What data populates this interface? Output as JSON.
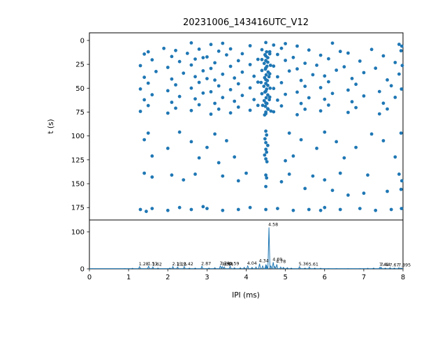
{
  "figure_title": "20231006_143416UTC_V12",
  "chart_data": [
    {
      "type": "scatter",
      "title": "20231006_143416UTC_V12",
      "xlabel": "",
      "ylabel": "t (s)",
      "xlim": [
        0,
        8
      ],
      "ylim": [
        -8,
        188
      ],
      "y_inverted": true,
      "xticks": [
        0,
        1,
        2,
        3,
        4,
        5,
        6,
        7,
        8
      ],
      "yticks": [
        0,
        25,
        50,
        75,
        100,
        125,
        150,
        175
      ],
      "marker_color": "#1f77b4",
      "points": [
        [
          2.6,
          2.5
        ],
        [
          3.1,
          4.2
        ],
        [
          3.4,
          3.0
        ],
        [
          4.1,
          5.5
        ],
        [
          4.5,
          2.2
        ],
        [
          4.7,
          4.8
        ],
        [
          5.0,
          3.3
        ],
        [
          5.3,
          5.9
        ],
        [
          6.2,
          2.8
        ],
        [
          7.9,
          4.1
        ],
        [
          7.97,
          6.0
        ],
        [
          1.9,
          8.3
        ],
        [
          2.2,
          10.5
        ],
        [
          2.8,
          9.1
        ],
        [
          3.3,
          11.2
        ],
        [
          3.6,
          8.8
        ],
        [
          4.4,
          9.7
        ],
        [
          4.6,
          11.8
        ],
        [
          4.9,
          8.2
        ],
        [
          5.6,
          10.1
        ],
        [
          6.4,
          11.5
        ],
        [
          7.2,
          9.4
        ],
        [
          7.95,
          10.8
        ],
        [
          1.5,
          11.9
        ],
        [
          1.4,
          14.2
        ],
        [
          2.1,
          16.8
        ],
        [
          2.5,
          13.5
        ],
        [
          3.0,
          17.2
        ],
        [
          3.5,
          15.1
        ],
        [
          3.9,
          13.9
        ],
        [
          4.5,
          16.3
        ],
        [
          4.8,
          14.7
        ],
        [
          5.2,
          17.8
        ],
        [
          5.9,
          15.5
        ],
        [
          6.6,
          13.2
        ],
        [
          7.5,
          16.1
        ],
        [
          2.9,
          18.0
        ],
        [
          1.6,
          20.3
        ],
        [
          2.3,
          22.1
        ],
        [
          2.7,
          19.5
        ],
        [
          3.2,
          23.4
        ],
        [
          3.8,
          21.2
        ],
        [
          4.3,
          19.8
        ],
        [
          4.55,
          22.8
        ],
        [
          5.0,
          20.9
        ],
        [
          5.5,
          23.9
        ],
        [
          6.1,
          19.2
        ],
        [
          6.9,
          21.6
        ],
        [
          7.8,
          23.1
        ],
        [
          1.3,
          26.4
        ],
        [
          2.0,
          28.2
        ],
        [
          2.6,
          25.7
        ],
        [
          3.1,
          29.3
        ],
        [
          3.6,
          27.1
        ],
        [
          4.1,
          25.3
        ],
        [
          4.5,
          28.8
        ],
        [
          4.7,
          26.9
        ],
        [
          5.3,
          29.8
        ],
        [
          5.8,
          25.9
        ],
        [
          6.5,
          27.6
        ],
        [
          7.3,
          29.1
        ],
        [
          7.98,
          26.2
        ],
        [
          1.7,
          32.5
        ],
        [
          2.4,
          34.3
        ],
        [
          2.9,
          31.8
        ],
        [
          3.4,
          35.4
        ],
        [
          3.9,
          33.2
        ],
        [
          4.4,
          31.4
        ],
        [
          4.6,
          34.9
        ],
        [
          5.1,
          32.0
        ],
        [
          5.7,
          35.9
        ],
        [
          6.3,
          31.1
        ],
        [
          7.0,
          33.7
        ],
        [
          7.9,
          35.2
        ],
        [
          1.4,
          38.6
        ],
        [
          2.1,
          40.4
        ],
        [
          2.7,
          37.9
        ],
        [
          3.2,
          41.5
        ],
        [
          3.7,
          39.3
        ],
        [
          4.2,
          37.5
        ],
        [
          4.5,
          41.0
        ],
        [
          4.8,
          38.1
        ],
        [
          5.4,
          41.9
        ],
        [
          6.0,
          37.2
        ],
        [
          6.7,
          39.8
        ],
        [
          7.6,
          41.3
        ],
        [
          3.0,
          40.0
        ],
        [
          1.5,
          44.7
        ],
        [
          2.2,
          46.5
        ],
        [
          2.8,
          43.9
        ],
        [
          3.3,
          47.6
        ],
        [
          3.8,
          45.4
        ],
        [
          4.3,
          43.6
        ],
        [
          4.55,
          47.1
        ],
        [
          4.9,
          44.2
        ],
        [
          5.5,
          48.0
        ],
        [
          6.1,
          43.3
        ],
        [
          6.8,
          45.9
        ],
        [
          7.7,
          47.4
        ],
        [
          1.3,
          50.8
        ],
        [
          2.0,
          52.6
        ],
        [
          2.6,
          49.9
        ],
        [
          3.1,
          53.7
        ],
        [
          3.6,
          51.5
        ],
        [
          4.1,
          49.7
        ],
        [
          4.5,
          53.2
        ],
        [
          4.7,
          50.3
        ],
        [
          5.3,
          54.1
        ],
        [
          5.9,
          49.4
        ],
        [
          6.6,
          52.0
        ],
        [
          7.4,
          53.5
        ],
        [
          7.96,
          50.9
        ],
        [
          1.6,
          56.9
        ],
        [
          2.3,
          58.7
        ],
        [
          2.9,
          55.1
        ],
        [
          3.4,
          59.8
        ],
        [
          3.9,
          57.6
        ],
        [
          4.4,
          55.8
        ],
        [
          4.6,
          59.3
        ],
        [
          5.0,
          56.4
        ],
        [
          5.6,
          60.0
        ],
        [
          6.2,
          55.5
        ],
        [
          7.0,
          58.1
        ],
        [
          7.8,
          59.6
        ],
        [
          1.4,
          62.1
        ],
        [
          2.1,
          64.8
        ],
        [
          2.7,
          61.2
        ],
        [
          3.2,
          65.9
        ],
        [
          3.7,
          63.7
        ],
        [
          4.2,
          61.9
        ],
        [
          4.5,
          65.4
        ],
        [
          4.8,
          62.5
        ],
        [
          5.4,
          66.0
        ],
        [
          6.0,
          61.6
        ],
        [
          6.7,
          64.2
        ],
        [
          7.5,
          65.7
        ],
        [
          1.5,
          68.2
        ],
        [
          2.2,
          70.9
        ],
        [
          2.8,
          67.3
        ],
        [
          3.3,
          71.9
        ],
        [
          3.8,
          69.8
        ],
        [
          4.3,
          68.0
        ],
        [
          4.55,
          71.5
        ],
        [
          4.9,
          68.6
        ],
        [
          5.5,
          72.0
        ],
        [
          6.1,
          67.7
        ],
        [
          6.8,
          70.3
        ],
        [
          7.6,
          71.8
        ],
        [
          1.3,
          74.3
        ],
        [
          2.0,
          76.1
        ],
        [
          2.6,
          73.4
        ],
        [
          3.1,
          77.2
        ],
        [
          3.6,
          75.9
        ],
        [
          4.1,
          73.1
        ],
        [
          4.5,
          76.6
        ],
        [
          4.7,
          74.7
        ],
        [
          5.3,
          77.8
        ],
        [
          5.9,
          73.8
        ],
        [
          6.6,
          75.4
        ],
        [
          7.4,
          76.9
        ],
        [
          4.52,
          12
        ],
        [
          4.48,
          15
        ],
        [
          4.55,
          18
        ],
        [
          4.5,
          21
        ],
        [
          4.46,
          24
        ],
        [
          4.53,
          27
        ],
        [
          4.49,
          30
        ],
        [
          4.56,
          33
        ],
        [
          4.51,
          36
        ],
        [
          4.47,
          39
        ],
        [
          4.54,
          42
        ],
        [
          4.5,
          45
        ],
        [
          4.45,
          48
        ],
        [
          4.52,
          51
        ],
        [
          4.48,
          54
        ],
        [
          4.55,
          57
        ],
        [
          4.51,
          60
        ],
        [
          4.46,
          63
        ],
        [
          4.53,
          66
        ],
        [
          4.49,
          69
        ],
        [
          4.56,
          72
        ],
        [
          4.5,
          75
        ],
        [
          4.47,
          78
        ],
        [
          4.6,
          14
        ],
        [
          4.62,
          26
        ],
        [
          4.58,
          38
        ],
        [
          4.61,
          50
        ],
        [
          4.59,
          62
        ],
        [
          4.63,
          74
        ],
        [
          4.4,
          20
        ],
        [
          4.38,
          44
        ],
        [
          4.42,
          68
        ],
        [
          1.5,
          97
        ],
        [
          2.3,
          96
        ],
        [
          3.2,
          98
        ],
        [
          4.5,
          95
        ],
        [
          4.52,
          99
        ],
        [
          5.1,
          97
        ],
        [
          6.0,
          96
        ],
        [
          7.2,
          98
        ],
        [
          7.95,
          97
        ],
        [
          1.4,
          104
        ],
        [
          2.6,
          106
        ],
        [
          3.5,
          105
        ],
        [
          4.48,
          103
        ],
        [
          4.5,
          107
        ],
        [
          4.55,
          110
        ],
        [
          5.4,
          104
        ],
        [
          6.3,
          106
        ],
        [
          7.5,
          105
        ],
        [
          2.0,
          113
        ],
        [
          3.0,
          112
        ],
        [
          4.5,
          114
        ],
        [
          4.52,
          117
        ],
        [
          5.8,
          113
        ],
        [
          6.8,
          112
        ],
        [
          1.6,
          121
        ],
        [
          2.8,
          123
        ],
        [
          3.7,
          122
        ],
        [
          4.47,
          120
        ],
        [
          4.5,
          124
        ],
        [
          5.2,
          121
        ],
        [
          6.5,
          123
        ],
        [
          7.8,
          122
        ],
        [
          4.53,
          127
        ],
        [
          3.3,
          128
        ],
        [
          5.0,
          126
        ],
        [
          1.4,
          139
        ],
        [
          2.1,
          141
        ],
        [
          2.7,
          140
        ],
        [
          3.4,
          142
        ],
        [
          4.0,
          139
        ],
        [
          4.5,
          141
        ],
        [
          4.52,
          144
        ],
        [
          5.1,
          140
        ],
        [
          5.7,
          142
        ],
        [
          6.4,
          139
        ],
        [
          7.1,
          141
        ],
        [
          7.9,
          140
        ],
        [
          2.4,
          146
        ],
        [
          3.8,
          147
        ],
        [
          4.9,
          148
        ],
        [
          6.0,
          146
        ],
        [
          7.97,
          147
        ],
        [
          1.6,
          143
        ],
        [
          5.5,
          155
        ],
        [
          6.2,
          157
        ],
        [
          7.0,
          160
        ],
        [
          7.6,
          158
        ],
        [
          7.95,
          156
        ],
        [
          4.5,
          153
        ],
        [
          6.6,
          162
        ],
        [
          1.3,
          177
        ],
        [
          1.6,
          176
        ],
        [
          2.0,
          178
        ],
        [
          2.3,
          175
        ],
        [
          2.6,
          177
        ],
        [
          3.0,
          176
        ],
        [
          3.4,
          178
        ],
        [
          3.8,
          177
        ],
        [
          4.1,
          175
        ],
        [
          4.5,
          177
        ],
        [
          4.8,
          176
        ],
        [
          5.2,
          178
        ],
        [
          5.6,
          177
        ],
        [
          6.0,
          175
        ],
        [
          6.4,
          177
        ],
        [
          6.9,
          176
        ],
        [
          7.3,
          178
        ],
        [
          7.7,
          177
        ],
        [
          7.96,
          176
        ],
        [
          2.9,
          174
        ],
        [
          5.9,
          178
        ],
        [
          1.45,
          179
        ]
      ]
    },
    {
      "type": "line",
      "xlabel": "IPI (ms)",
      "ylabel": "",
      "xlim": [
        0,
        8
      ],
      "ylim": [
        0,
        132
      ],
      "xticks": [
        0,
        1,
        2,
        3,
        4,
        5,
        6,
        7,
        8
      ],
      "yticks": [
        0,
        100
      ],
      "line_color": "#1f77b4",
      "peaks": [
        {
          "x": 1.28,
          "h": 6,
          "label": "1.28"
        },
        {
          "x": 1.51,
          "h": 7,
          "label": "1.51"
        },
        {
          "x": 1.62,
          "h": 5,
          "label": "1.62"
        },
        {
          "x": 2.13,
          "h": 6,
          "label": "2.13"
        },
        {
          "x": 2.25,
          "h": 5,
          "label": "2.25"
        },
        {
          "x": 2.42,
          "h": 6,
          "label": "2.42"
        },
        {
          "x": 2.87,
          "h": 7,
          "label": "2.87"
        },
        {
          "x": 3.34,
          "h": 8,
          "label": "3.34"
        },
        {
          "x": 3.39,
          "h": 6,
          "label": "3.39"
        },
        {
          "x": 3.44,
          "h": 5,
          "label": "3.44"
        },
        {
          "x": 3.59,
          "h": 7,
          "label": "3.59"
        },
        {
          "x": 4.04,
          "h": 8,
          "label": "4.04"
        },
        {
          "x": 4.34,
          "h": 14,
          "label": "4.34"
        },
        {
          "x": 4.58,
          "h": 112,
          "label": "4.58"
        },
        {
          "x": 4.69,
          "h": 18,
          "label": "4.69"
        },
        {
          "x": 4.78,
          "h": 12,
          "label": "4.78"
        },
        {
          "x": 5.36,
          "h": 6,
          "label": "5.36"
        },
        {
          "x": 5.61,
          "h": 5,
          "label": "5.61"
        },
        {
          "x": 7.41,
          "h": 4,
          "label": "7.41"
        },
        {
          "x": 7.44,
          "h": 4,
          "label": "7.44"
        },
        {
          "x": 7.67,
          "h": 3,
          "label": "7.67"
        },
        {
          "x": 7.895,
          "h": 3,
          "label": "7.895"
        }
      ],
      "minor_bumps": [
        [
          0.9,
          1
        ],
        [
          1.1,
          1.5
        ],
        [
          1.75,
          2
        ],
        [
          2.05,
          2
        ],
        [
          2.55,
          2
        ],
        [
          2.7,
          2
        ],
        [
          3.05,
          2
        ],
        [
          3.2,
          3
        ],
        [
          3.7,
          3
        ],
        [
          3.85,
          3
        ],
        [
          3.95,
          4
        ],
        [
          4.15,
          4
        ],
        [
          4.25,
          5
        ],
        [
          4.42,
          8
        ],
        [
          4.5,
          10
        ],
        [
          4.52,
          9
        ],
        [
          4.63,
          8
        ],
        [
          4.73,
          6
        ],
        [
          4.88,
          5
        ],
        [
          4.95,
          4
        ],
        [
          5.05,
          3
        ],
        [
          5.15,
          2
        ],
        [
          5.5,
          2
        ],
        [
          5.75,
          2
        ],
        [
          5.9,
          1.5
        ],
        [
          6.1,
          1
        ],
        [
          6.3,
          1
        ],
        [
          6.6,
          1
        ],
        [
          6.9,
          1
        ],
        [
          7.1,
          1.5
        ],
        [
          7.25,
          2
        ],
        [
          7.55,
          2
        ],
        [
          7.78,
          2
        ],
        [
          7.95,
          2
        ]
      ]
    }
  ]
}
